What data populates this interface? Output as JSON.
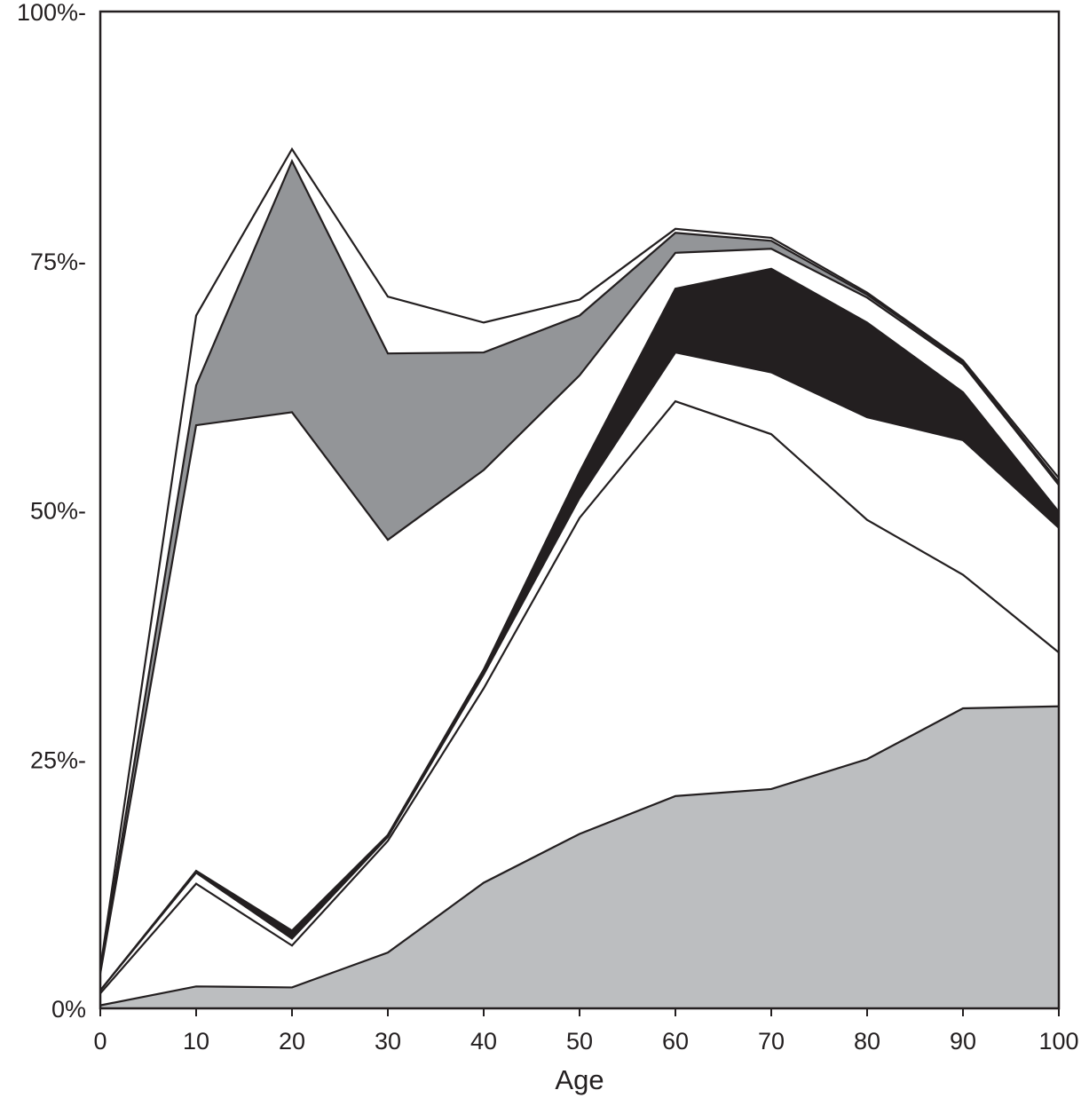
{
  "chart_data": {
    "type": "area",
    "title": "",
    "xlabel": "Age",
    "ylabel": "",
    "xlim": [
      0,
      100
    ],
    "ylim": [
      0,
      100
    ],
    "x_ticks": [
      0,
      10,
      20,
      30,
      40,
      50,
      60,
      70,
      80,
      90,
      100
    ],
    "x_tick_labels": [
      "0",
      "10",
      "20",
      "30",
      "40",
      "50",
      "60",
      "70",
      "80",
      "90",
      "100"
    ],
    "y_ticks": [
      0,
      25,
      50,
      75,
      100
    ],
    "y_tick_labels": [
      "0%",
      "25%-",
      "50%-",
      "75%-",
      "100%-"
    ],
    "grid": false,
    "legend": "none",
    "x": [
      0,
      10,
      20,
      30,
      40,
      50,
      60,
      70,
      80,
      90,
      100
    ],
    "boundaries": [
      [
        0.3,
        2.2,
        2.1,
        5.6,
        12.6,
        17.5,
        21.3,
        22.0,
        25.0,
        30.1,
        30.3
      ],
      [
        1.5,
        12.5,
        6.3,
        16.8,
        32.1,
        49.2,
        60.9,
        57.6,
        49.0,
        43.5,
        35.7
      ],
      [
        1.8,
        13.6,
        7.0,
        17.2,
        33.5,
        51.2,
        65.8,
        63.8,
        59.3,
        57.0,
        48.2
      ],
      [
        1.8,
        13.8,
        7.8,
        17.4,
        34.0,
        53.8,
        72.2,
        74.2,
        68.8,
        61.8,
        49.8
      ],
      [
        3.5,
        58.5,
        59.8,
        47.0,
        54.0,
        63.5,
        75.8,
        76.2,
        71.3,
        64.6,
        52.5
      ],
      [
        3.8,
        62.5,
        85.0,
        65.7,
        65.8,
        69.5,
        77.8,
        77.0,
        71.6,
        64.8,
        52.8
      ],
      [
        4.0,
        69.5,
        86.2,
        71.4,
        68.8,
        71.1,
        78.2,
        77.3,
        71.8,
        65.0,
        53.2
      ]
    ],
    "fills": [
      "#bcbec0",
      "#ffffff",
      "#ffffff",
      "#231f20",
      "#ffffff",
      "#939598",
      "#ffffff"
    ]
  }
}
